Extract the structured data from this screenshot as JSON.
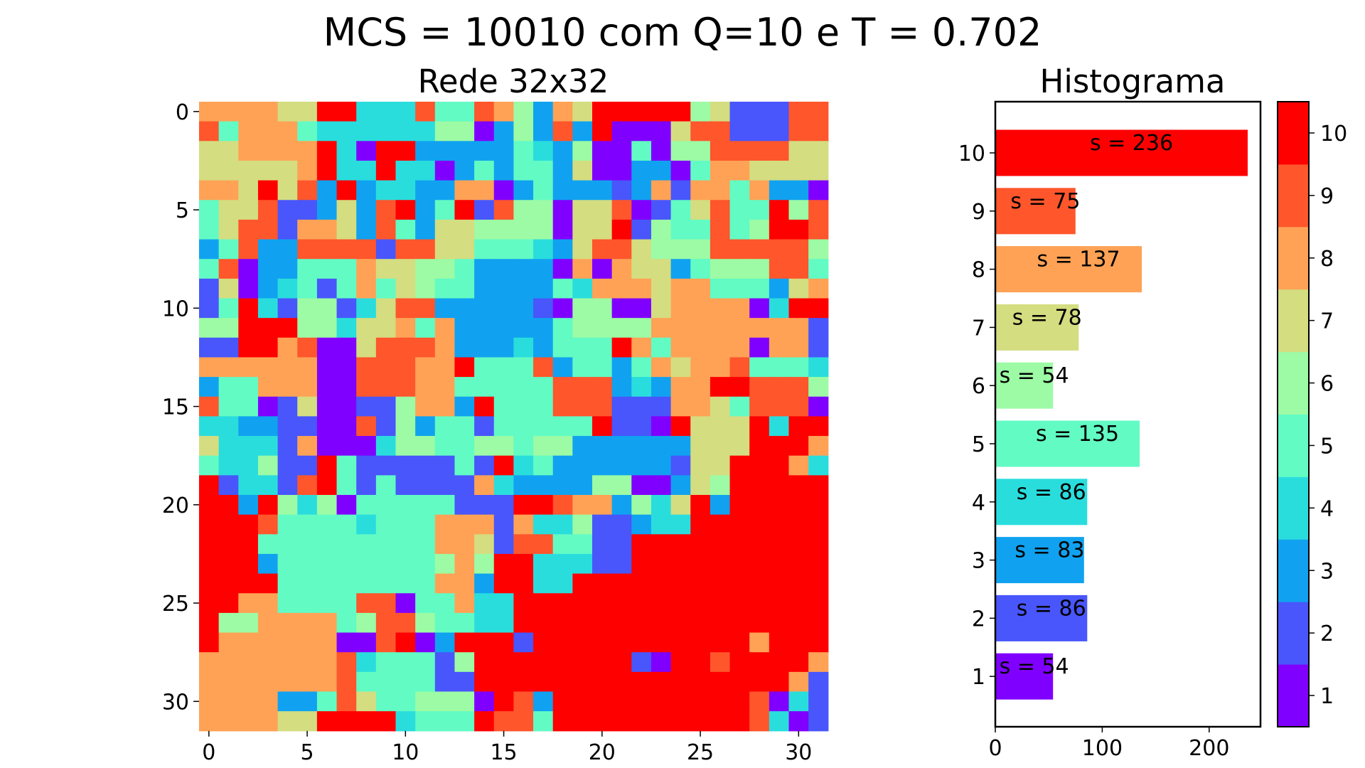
{
  "figure": {
    "suptitle": "MCS = 10010 com Q=10 e T = 0.702"
  },
  "chart_data": [
    {
      "type": "heatmap",
      "title": "Rede 32x32",
      "x_ticks": [
        "0",
        "5",
        "10",
        "15",
        "20",
        "25",
        "30"
      ],
      "y_ticks": [
        "0",
        "5",
        "10",
        "15",
        "20",
        "25",
        "30"
      ],
      "grid": [
        [
          8,
          8,
          8,
          8,
          7,
          7,
          10,
          10,
          4,
          4,
          4,
          9,
          5,
          5,
          9,
          8,
          6,
          3,
          8,
          7,
          10,
          10,
          10,
          10,
          10,
          6,
          7,
          2,
          2,
          2,
          9,
          9
        ],
        [
          9,
          5,
          8,
          8,
          8,
          5,
          4,
          4,
          4,
          4,
          4,
          4,
          6,
          6,
          1,
          3,
          6,
          3,
          9,
          3,
          10,
          1,
          1,
          1,
          7,
          9,
          9,
          2,
          2,
          2,
          9,
          9
        ],
        [
          7,
          7,
          8,
          8,
          8,
          8,
          10,
          4,
          1,
          10,
          10,
          3,
          3,
          3,
          3,
          3,
          5,
          4,
          3,
          6,
          1,
          1,
          5,
          1,
          6,
          6,
          9,
          9,
          9,
          9,
          7,
          7
        ],
        [
          7,
          7,
          7,
          7,
          7,
          8,
          10,
          4,
          4,
          10,
          4,
          4,
          1,
          3,
          5,
          3,
          5,
          5,
          3,
          7,
          1,
          1,
          3,
          3,
          1,
          5,
          8,
          8,
          7,
          7,
          7,
          7
        ],
        [
          8,
          8,
          7,
          10,
          7,
          9,
          3,
          10,
          3,
          4,
          4,
          3,
          3,
          8,
          8,
          1,
          3,
          5,
          3,
          3,
          3,
          2,
          3,
          8,
          2,
          8,
          8,
          5,
          8,
          3,
          3,
          1
        ],
        [
          5,
          7,
          7,
          9,
          2,
          2,
          3,
          7,
          3,
          9,
          10,
          3,
          5,
          10,
          2,
          9,
          6,
          6,
          1,
          7,
          7,
          9,
          1,
          2,
          5,
          7,
          9,
          5,
          5,
          10,
          6,
          9
        ],
        [
          5,
          7,
          9,
          9,
          2,
          8,
          8,
          7,
          3,
          9,
          5,
          3,
          7,
          7,
          6,
          6,
          6,
          6,
          1,
          7,
          7,
          10,
          2,
          6,
          5,
          5,
          9,
          5,
          6,
          10,
          10,
          9
        ],
        [
          3,
          5,
          9,
          3,
          3,
          9,
          9,
          9,
          9,
          2,
          9,
          9,
          7,
          7,
          5,
          5,
          5,
          4,
          3,
          7,
          9,
          9,
          7,
          6,
          6,
          6,
          9,
          9,
          9,
          9,
          9,
          6
        ],
        [
          5,
          9,
          1,
          3,
          3,
          5,
          5,
          5,
          8,
          7,
          7,
          6,
          6,
          5,
          3,
          3,
          3,
          3,
          1,
          8,
          1,
          8,
          7,
          7,
          3,
          5,
          6,
          6,
          6,
          9,
          9,
          5
        ],
        [
          2,
          7,
          1,
          3,
          4,
          5,
          2,
          5,
          8,
          5,
          7,
          6,
          5,
          5,
          3,
          3,
          3,
          3,
          5,
          4,
          8,
          8,
          8,
          7,
          8,
          8,
          5,
          5,
          5,
          3,
          7,
          8
        ],
        [
          2,
          5,
          10,
          4,
          2,
          6,
          6,
          2,
          4,
          7,
          9,
          9,
          3,
          3,
          3,
          3,
          3,
          2,
          1,
          6,
          6,
          1,
          1,
          7,
          8,
          8,
          8,
          8,
          1,
          4,
          10,
          10
        ],
        [
          6,
          6,
          10,
          10,
          10,
          6,
          6,
          4,
          7,
          7,
          8,
          5,
          8,
          3,
          3,
          3,
          3,
          3,
          5,
          6,
          6,
          6,
          6,
          8,
          8,
          8,
          8,
          8,
          8,
          8,
          8,
          2
        ],
        [
          2,
          2,
          10,
          10,
          8,
          9,
          1,
          1,
          7,
          9,
          9,
          9,
          8,
          3,
          3,
          3,
          4,
          3,
          5,
          5,
          5,
          10,
          8,
          5,
          8,
          8,
          8,
          8,
          1,
          8,
          8,
          2
        ],
        [
          8,
          8,
          8,
          8,
          8,
          8,
          1,
          1,
          9,
          9,
          9,
          8,
          8,
          10,
          5,
          5,
          5,
          9,
          3,
          5,
          5,
          3,
          5,
          8,
          7,
          8,
          8,
          9,
          5,
          5,
          5,
          4
        ],
        [
          3,
          5,
          5,
          8,
          8,
          8,
          1,
          1,
          9,
          9,
          9,
          8,
          8,
          5,
          5,
          5,
          5,
          5,
          9,
          9,
          9,
          3,
          4,
          3,
          8,
          8,
          10,
          10,
          9,
          9,
          9,
          6
        ],
        [
          9,
          5,
          5,
          1,
          2,
          7,
          1,
          1,
          2,
          2,
          6,
          8,
          8,
          3,
          10,
          5,
          5,
          5,
          9,
          9,
          9,
          2,
          2,
          2,
          8,
          8,
          7,
          5,
          9,
          9,
          9,
          1
        ],
        [
          4,
          4,
          3,
          3,
          2,
          2,
          1,
          1,
          9,
          2,
          6,
          3,
          5,
          5,
          2,
          5,
          5,
          5,
          5,
          5,
          10,
          2,
          2,
          1,
          10,
          7,
          7,
          7,
          10,
          4,
          10,
          10
        ],
        [
          7,
          4,
          4,
          4,
          2,
          8,
          1,
          1,
          1,
          4,
          6,
          6,
          5,
          5,
          6,
          6,
          5,
          6,
          6,
          3,
          3,
          3,
          3,
          3,
          3,
          7,
          7,
          7,
          10,
          10,
          10,
          8
        ],
        [
          5,
          4,
          4,
          6,
          2,
          2,
          10,
          5,
          2,
          2,
          2,
          2,
          2,
          5,
          2,
          10,
          4,
          5,
          3,
          3,
          3,
          3,
          3,
          3,
          2,
          7,
          7,
          10,
          10,
          10,
          8,
          4
        ],
        [
          10,
          2,
          4,
          4,
          2,
          9,
          10,
          5,
          2,
          5,
          2,
          2,
          2,
          2,
          8,
          4,
          3,
          3,
          3,
          3,
          6,
          6,
          1,
          1,
          3,
          7,
          6,
          10,
          10,
          10,
          10,
          10
        ],
        [
          10,
          10,
          3,
          10,
          6,
          4,
          6,
          1,
          5,
          5,
          5,
          5,
          5,
          2,
          2,
          2,
          10,
          10,
          9,
          8,
          8,
          3,
          6,
          4,
          7,
          10,
          3,
          10,
          10,
          10,
          10,
          10
        ],
        [
          10,
          10,
          10,
          9,
          5,
          5,
          5,
          5,
          4,
          5,
          5,
          5,
          8,
          8,
          8,
          2,
          8,
          4,
          4,
          6,
          2,
          2,
          3,
          4,
          4,
          10,
          10,
          10,
          10,
          10,
          10,
          10
        ],
        [
          10,
          10,
          10,
          5,
          5,
          5,
          5,
          5,
          5,
          5,
          5,
          5,
          8,
          8,
          7,
          2,
          9,
          9,
          5,
          5,
          2,
          2,
          10,
          10,
          10,
          10,
          10,
          10,
          10,
          10,
          10,
          10
        ],
        [
          10,
          10,
          10,
          3,
          5,
          5,
          5,
          5,
          5,
          5,
          5,
          5,
          6,
          8,
          6,
          10,
          10,
          4,
          4,
          4,
          2,
          2,
          10,
          10,
          10,
          10,
          10,
          10,
          10,
          10,
          10,
          10
        ],
        [
          10,
          10,
          10,
          10,
          5,
          5,
          5,
          5,
          5,
          5,
          5,
          5,
          8,
          8,
          3,
          10,
          10,
          4,
          4,
          10,
          10,
          10,
          10,
          10,
          10,
          10,
          10,
          10,
          10,
          10,
          10,
          10
        ],
        [
          10,
          10,
          8,
          8,
          5,
          5,
          5,
          5,
          9,
          9,
          1,
          5,
          5,
          8,
          4,
          4,
          10,
          10,
          10,
          10,
          10,
          10,
          10,
          10,
          10,
          10,
          10,
          10,
          10,
          10,
          10,
          10
        ],
        [
          10,
          6,
          6,
          8,
          8,
          8,
          8,
          5,
          6,
          9,
          9,
          6,
          5,
          5,
          4,
          4,
          10,
          10,
          10,
          10,
          10,
          10,
          10,
          10,
          10,
          10,
          10,
          10,
          10,
          10,
          10,
          10
        ],
        [
          10,
          8,
          8,
          8,
          8,
          8,
          8,
          1,
          1,
          9,
          10,
          1,
          3,
          10,
          10,
          10,
          2,
          10,
          10,
          10,
          10,
          10,
          10,
          10,
          10,
          10,
          10,
          10,
          8,
          10,
          10,
          10
        ],
        [
          8,
          8,
          8,
          8,
          8,
          8,
          8,
          9,
          4,
          5,
          5,
          5,
          2,
          6,
          10,
          10,
          10,
          10,
          10,
          10,
          10,
          10,
          2,
          1,
          10,
          10,
          9,
          10,
          10,
          10,
          10,
          8
        ],
        [
          8,
          8,
          8,
          8,
          8,
          8,
          8,
          9,
          5,
          5,
          5,
          5,
          2,
          2,
          10,
          10,
          10,
          10,
          10,
          10,
          10,
          10,
          10,
          10,
          10,
          10,
          10,
          10,
          10,
          10,
          8,
          2
        ],
        [
          8,
          8,
          8,
          8,
          3,
          3,
          5,
          9,
          7,
          5,
          5,
          6,
          6,
          6,
          1,
          10,
          9,
          3,
          10,
          10,
          10,
          10,
          10,
          10,
          10,
          10,
          10,
          10,
          9,
          1,
          4,
          2
        ],
        [
          8,
          8,
          8,
          8,
          7,
          7,
          10,
          10,
          10,
          10,
          4,
          5,
          5,
          5,
          10,
          9,
          9,
          5,
          10,
          10,
          10,
          10,
          10,
          10,
          10,
          10,
          10,
          10,
          9,
          4,
          1,
          2
        ]
      ]
    },
    {
      "type": "bar",
      "orientation": "horizontal",
      "title": "Histograma",
      "categories": [
        "1",
        "2",
        "3",
        "4",
        "5",
        "6",
        "7",
        "8",
        "9",
        "10"
      ],
      "values": [
        54,
        86,
        83,
        86,
        135,
        54,
        78,
        137,
        75,
        236
      ],
      "labels": [
        "s = 54",
        "s = 86",
        "s = 83",
        "s = 86",
        "s = 135",
        "s = 54",
        "s = 78",
        "s = 137",
        "s = 75",
        "s = 236"
      ],
      "x_ticks": [
        "0",
        "100",
        "200"
      ],
      "xlim": [
        0,
        248
      ]
    }
  ],
  "colorbar": {
    "ticks": [
      "1",
      "2",
      "3",
      "4",
      "5",
      "6",
      "7",
      "8",
      "9",
      "10"
    ],
    "colors": [
      "#8000ff",
      "#4856fb",
      "#10a2f0",
      "#2adddd",
      "#62fbc4",
      "#9cfba4",
      "#d4dd80",
      "#ffa256",
      "#ff562c",
      "#ff0000"
    ]
  }
}
